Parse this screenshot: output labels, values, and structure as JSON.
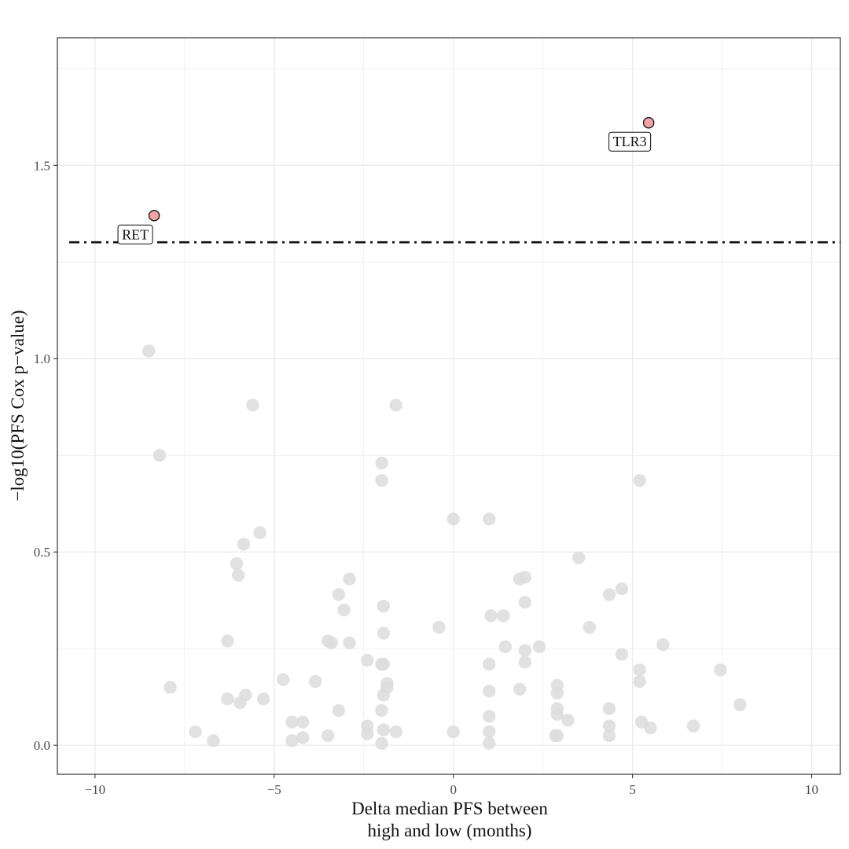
{
  "chart_data": {
    "type": "scatter",
    "title": "",
    "xlabel_lines": [
      "Delta median PFS between",
      "high and low (months)"
    ],
    "ylabel": "−log10(PFS Cox p−value)",
    "xlim": [
      -11.05,
      10.8
    ],
    "ylim": [
      -0.075,
      1.83
    ],
    "x_ticks": [
      -10,
      -5,
      0,
      5,
      10
    ],
    "x_tick_labels": [
      "−10",
      "−5",
      "0",
      "5",
      "10"
    ],
    "y_ticks": [
      0.0,
      0.5,
      1.0,
      1.5
    ],
    "y_tick_labels": [
      "0.0",
      "0.5",
      "1.0",
      "1.5"
    ],
    "grid": true,
    "threshold": 1.301,
    "colors": {
      "background_point": "#dcdcdc",
      "highlight_fill": "#f4a3a3",
      "highlight_stroke": "#1a1a1a",
      "threshold_line": "#111111",
      "grid": "#ebebeb",
      "panel_border": "#333333"
    },
    "highlighted": [
      {
        "label": "RET",
        "x": -8.35,
        "y": 1.37
      },
      {
        "label": "TLR3",
        "x": 5.45,
        "y": 1.61
      }
    ],
    "points": [
      {
        "x": -8.5,
        "y": 1.02
      },
      {
        "x": -8.2,
        "y": 0.75
      },
      {
        "x": -7.9,
        "y": 0.15
      },
      {
        "x": -7.2,
        "y": 0.035
      },
      {
        "x": -6.7,
        "y": 0.012
      },
      {
        "x": -6.3,
        "y": 0.27
      },
      {
        "x": -6.3,
        "y": 0.12
      },
      {
        "x": -6.05,
        "y": 0.47
      },
      {
        "x": -6.0,
        "y": 0.44
      },
      {
        "x": -5.95,
        "y": 0.11
      },
      {
        "x": -5.85,
        "y": 0.52
      },
      {
        "x": -5.8,
        "y": 0.13
      },
      {
        "x": -5.6,
        "y": 0.88
      },
      {
        "x": -5.4,
        "y": 0.55
      },
      {
        "x": -5.3,
        "y": 0.12
      },
      {
        "x": -4.75,
        "y": 0.17
      },
      {
        "x": -4.5,
        "y": 0.06
      },
      {
        "x": -4.5,
        "y": 0.012
      },
      {
        "x": -4.2,
        "y": 0.06
      },
      {
        "x": -4.2,
        "y": 0.02
      },
      {
        "x": -3.85,
        "y": 0.165
      },
      {
        "x": -3.5,
        "y": 0.27
      },
      {
        "x": -3.4,
        "y": 0.265
      },
      {
        "x": -3.5,
        "y": 0.025
      },
      {
        "x": -3.2,
        "y": 0.39
      },
      {
        "x": -3.2,
        "y": 0.09
      },
      {
        "x": -3.05,
        "y": 0.35
      },
      {
        "x": -2.9,
        "y": 0.43
      },
      {
        "x": -2.9,
        "y": 0.265
      },
      {
        "x": -2.4,
        "y": 0.22
      },
      {
        "x": -2.4,
        "y": 0.05
      },
      {
        "x": -2.4,
        "y": 0.03
      },
      {
        "x": -2.0,
        "y": 0.73
      },
      {
        "x": -2.0,
        "y": 0.685
      },
      {
        "x": -1.95,
        "y": 0.36
      },
      {
        "x": -1.95,
        "y": 0.29
      },
      {
        "x": -2.0,
        "y": 0.21
      },
      {
        "x": -1.95,
        "y": 0.21
      },
      {
        "x": -1.85,
        "y": 0.16
      },
      {
        "x": -1.85,
        "y": 0.15
      },
      {
        "x": -1.95,
        "y": 0.13
      },
      {
        "x": -2.0,
        "y": 0.09
      },
      {
        "x": -1.95,
        "y": 0.04
      },
      {
        "x": -2.0,
        "y": 0.005
      },
      {
        "x": -1.6,
        "y": 0.88
      },
      {
        "x": -1.6,
        "y": 0.035
      },
      {
        "x": -0.4,
        "y": 0.305
      },
      {
        "x": 0.0,
        "y": 0.585
      },
      {
        "x": 0.0,
        "y": 0.035
      },
      {
        "x": 1.0,
        "y": 0.585
      },
      {
        "x": 1.05,
        "y": 0.335
      },
      {
        "x": 1.0,
        "y": 0.21
      },
      {
        "x": 1.0,
        "y": 0.14
      },
      {
        "x": 1.0,
        "y": 0.075
      },
      {
        "x": 1.0,
        "y": 0.035
      },
      {
        "x": 1.0,
        "y": 0.005
      },
      {
        "x": 1.4,
        "y": 0.335
      },
      {
        "x": 1.45,
        "y": 0.255
      },
      {
        "x": 1.85,
        "y": 0.43
      },
      {
        "x": 1.85,
        "y": 0.145
      },
      {
        "x": 2.0,
        "y": 0.435
      },
      {
        "x": 2.0,
        "y": 0.37
      },
      {
        "x": 2.0,
        "y": 0.245
      },
      {
        "x": 2.0,
        "y": 0.215
      },
      {
        "x": 2.4,
        "y": 0.255
      },
      {
        "x": 2.9,
        "y": 0.155
      },
      {
        "x": 2.9,
        "y": 0.135
      },
      {
        "x": 2.9,
        "y": 0.095
      },
      {
        "x": 2.9,
        "y": 0.08
      },
      {
        "x": 2.85,
        "y": 0.025
      },
      {
        "x": 2.9,
        "y": 0.025
      },
      {
        "x": 3.2,
        "y": 0.065
      },
      {
        "x": 3.5,
        "y": 0.485
      },
      {
        "x": 3.8,
        "y": 0.305
      },
      {
        "x": 4.35,
        "y": 0.39
      },
      {
        "x": 4.35,
        "y": 0.095
      },
      {
        "x": 4.35,
        "y": 0.05
      },
      {
        "x": 4.35,
        "y": 0.025
      },
      {
        "x": 4.7,
        "y": 0.405
      },
      {
        "x": 4.7,
        "y": 0.235
      },
      {
        "x": 5.2,
        "y": 0.685
      },
      {
        "x": 5.2,
        "y": 0.195
      },
      {
        "x": 5.2,
        "y": 0.165
      },
      {
        "x": 5.25,
        "y": 0.06
      },
      {
        "x": 5.5,
        "y": 0.045
      },
      {
        "x": 5.85,
        "y": 0.26
      },
      {
        "x": 6.7,
        "y": 0.05
      },
      {
        "x": 7.45,
        "y": 0.195
      },
      {
        "x": 8.0,
        "y": 0.105
      }
    ]
  }
}
